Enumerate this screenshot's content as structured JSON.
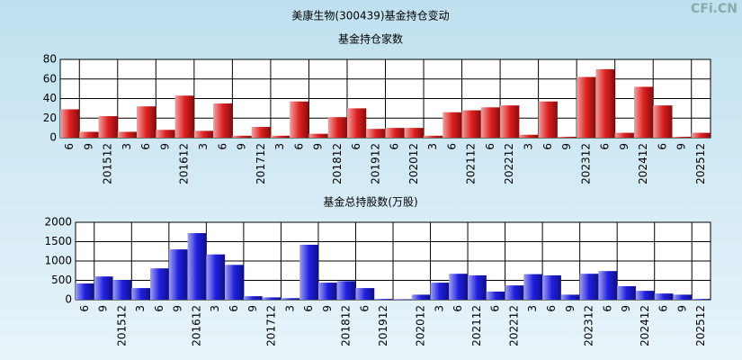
{
  "title": "美康生物(300439)基金持仓变动",
  "watermark": "CFi.CN",
  "chart_data": [
    {
      "type": "bar",
      "title": "基金持仓家数",
      "categories": [
        "6",
        "9",
        "201512",
        "3",
        "6",
        "9",
        "201612",
        "3",
        "6",
        "9",
        "201712",
        "3",
        "6",
        "9",
        "201812",
        "6",
        "201912",
        "6",
        "202012",
        "3",
        "6",
        "202112",
        "6",
        "202212",
        "3",
        "6",
        "9",
        "202312",
        "6",
        "9",
        "202412",
        "6",
        "9",
        "202512"
      ],
      "values": [
        29,
        6,
        22,
        6,
        32,
        8,
        43,
        7,
        35,
        2,
        11,
        2,
        37,
        4,
        21,
        30,
        9,
        10,
        10,
        2,
        26,
        28,
        31,
        33,
        3,
        37,
        1,
        62,
        70,
        5,
        52,
        33,
        1,
        5
      ],
      "color": "#e02020",
      "ylim": [
        0,
        80
      ],
      "yticks": [
        0,
        20,
        40,
        60,
        80
      ],
      "grid": true
    },
    {
      "type": "bar",
      "title": "基金总持股数(万股)",
      "categories": [
        "6",
        "9",
        "201512",
        "3",
        "6",
        "9",
        "201612",
        "3",
        "6",
        "9",
        "201712",
        "3",
        "6",
        "9",
        "201812",
        "6",
        "201912",
        null,
        "202012",
        "3",
        "6",
        "202112",
        "6",
        "202212",
        "3",
        "6",
        "9",
        "202312",
        "6",
        "9",
        "202412",
        "6",
        "9",
        "202512"
      ],
      "values": [
        420,
        600,
        510,
        300,
        810,
        1300,
        1720,
        1170,
        900,
        90,
        60,
        40,
        1420,
        440,
        480,
        300,
        20,
        10,
        130,
        440,
        670,
        630,
        210,
        370,
        660,
        630,
        130,
        670,
        740,
        350,
        230,
        160,
        130,
        20
      ],
      "color": "#2020e0",
      "ylim": [
        0,
        2000
      ],
      "yticks": [
        0,
        500,
        1000,
        1500,
        2000
      ],
      "grid": true
    }
  ]
}
